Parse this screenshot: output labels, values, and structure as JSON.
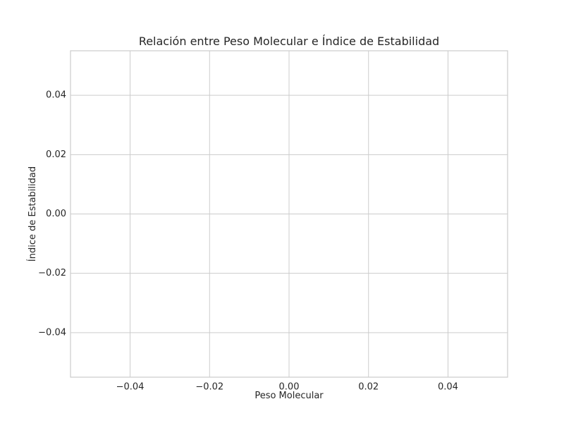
{
  "chart_data": {
    "type": "scatter",
    "title": "Relación entre Peso Molecular e Índice de Estabilidad",
    "xlabel": "Peso Molecular",
    "ylabel": "Índice de Estabilidad",
    "xlim": [
      -0.055,
      0.055
    ],
    "ylim": [
      -0.055,
      0.055
    ],
    "xticks": [
      -0.04,
      -0.02,
      0.0,
      0.02,
      0.04
    ],
    "yticks": [
      -0.04,
      -0.02,
      0.0,
      0.02,
      0.04
    ],
    "xtick_labels": [
      "−0.04",
      "−0.02",
      "0.00",
      "0.02",
      "0.04"
    ],
    "ytick_labels": [
      "−0.04",
      "−0.02",
      "0.00",
      "0.02",
      "0.04"
    ],
    "grid": true,
    "points": [],
    "colors": {
      "grid": "#cccccc",
      "frame": "#cccccc",
      "text": "#262626",
      "background": "#ffffff"
    }
  }
}
